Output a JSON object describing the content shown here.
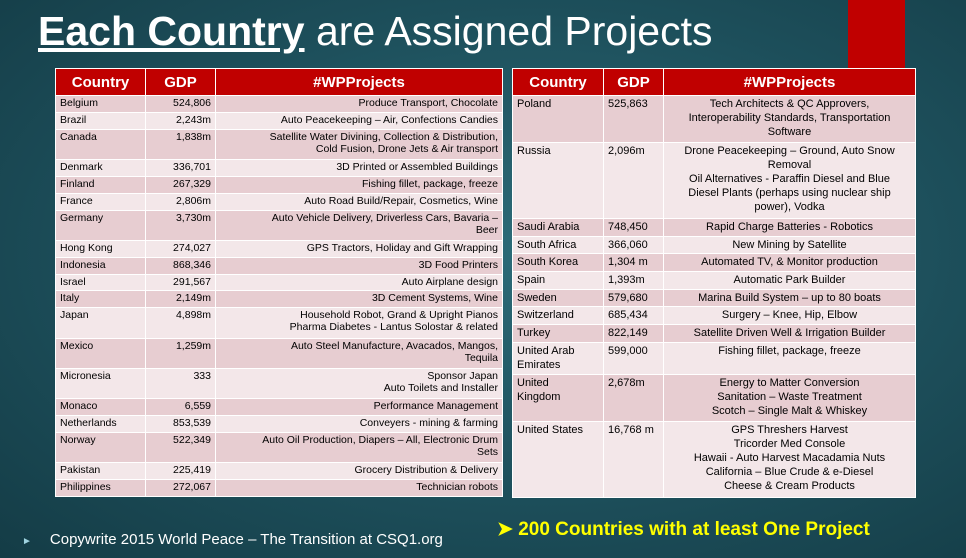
{
  "title": {
    "emphasis": "Each Country",
    "rest": "are Assigned Projects"
  },
  "left_table": {
    "header": [
      "Country",
      "GDP",
      "#WPProjects"
    ],
    "rows": [
      [
        "Belgium",
        "524,806",
        "Produce Transport, Chocolate"
      ],
      [
        "Brazil",
        "2,243m",
        "Auto Peacekeeping – Air, Confections Candies"
      ],
      [
        "Canada",
        "1,838m",
        "Satellite Water Divining, Collection & Distribution,\nCold Fusion, Drone Jets & Air transport"
      ],
      [
        "Denmark",
        "336,701",
        "3D Printed or Assembled Buildings"
      ],
      [
        "Finland",
        "267,329",
        "Fishing fillet, package, freeze"
      ],
      [
        "France",
        "2,806m",
        "Auto Road Build/Repair, Cosmetics, Wine"
      ],
      [
        "Germany",
        "3,730m",
        "Auto Vehicle Delivery, Driverless Cars, Bavaria –\nBeer"
      ],
      [
        "Hong Kong",
        "274,027",
        "GPS Tractors, Holiday and Gift Wrapping"
      ],
      [
        "Indonesia",
        "868,346",
        "3D Food Printers"
      ],
      [
        "Israel",
        "291,567",
        "Auto Airplane design"
      ],
      [
        "Italy",
        "2,149m",
        "3D Cement Systems, Wine"
      ],
      [
        "Japan",
        "4,898m",
        "Household Robot, Grand & Upright Pianos\nPharma Diabetes - Lantus Solostar & related"
      ],
      [
        "Mexico",
        "1,259m",
        "Auto Steel Manufacture, Avacados, Mangos,\nTequila"
      ],
      [
        "Micronesia",
        "333",
        "Sponsor Japan\nAuto Toilets and Installer"
      ],
      [
        "Monaco",
        "6,559",
        "Performance Management"
      ],
      [
        "Netherlands",
        "853,539",
        "Conveyers - mining & farming"
      ],
      [
        "Norway",
        "522,349",
        "Auto Oil Production, Diapers – All, Electronic Drum\nSets"
      ],
      [
        "Pakistan",
        "225,419",
        "Grocery Distribution & Delivery"
      ],
      [
        "Philippines",
        "272,067",
        "Technician robots"
      ]
    ]
  },
  "right_table": {
    "header": [
      "Country",
      "GDP",
      "#WPProjects"
    ],
    "rows": [
      [
        "Poland",
        "525,863",
        "Tech Architects & QC Approvers,\nInteroperability Standards, Transportation\nSoftware"
      ],
      [
        "Russia",
        "2,096m",
        "Drone Peacekeeping – Ground, Auto Snow\nRemoval\nOil Alternatives -  Paraffin Diesel and Blue\nDiesel Plants (perhaps using nuclear ship\npower), Vodka"
      ],
      [
        "Saudi Arabia",
        "748,450",
        "Rapid Charge Batteries - Robotics"
      ],
      [
        "South Africa",
        "366,060",
        "New Mining by Satellite"
      ],
      [
        "South Korea",
        "1,304 m",
        "Automated TV, & Monitor production"
      ],
      [
        "Spain",
        "1,393m",
        "Automatic Park Builder"
      ],
      [
        "Sweden",
        "579,680",
        "Marina Build System –  up to 80 boats"
      ],
      [
        "Switzerland",
        "685,434",
        "Surgery – Knee, Hip, Elbow"
      ],
      [
        "Turkey",
        "822,149",
        "Satellite Driven Well & Irrigation Builder"
      ],
      [
        "United Arab\nEmirates",
        "599,000",
        "Fishing fillet, package, freeze"
      ],
      [
        "United\nKingdom",
        "2,678m",
        "Energy to  Matter Conversion\nSanitation – Waste Treatment\nScotch – Single Malt & Whiskey"
      ],
      [
        "United States",
        "16,768 m",
        "GPS Threshers Harvest\nTricorder Med Console\nHawaii - Auto Harvest Macadamia Nuts\nCalifornia – Blue Crude & e-Diesel\nCheese & Cream Products"
      ]
    ]
  },
  "footer": "Copywrite 2015 World Peace – The Transition at CSQ1.org",
  "tagline": "200 Countries with at least One Project"
}
